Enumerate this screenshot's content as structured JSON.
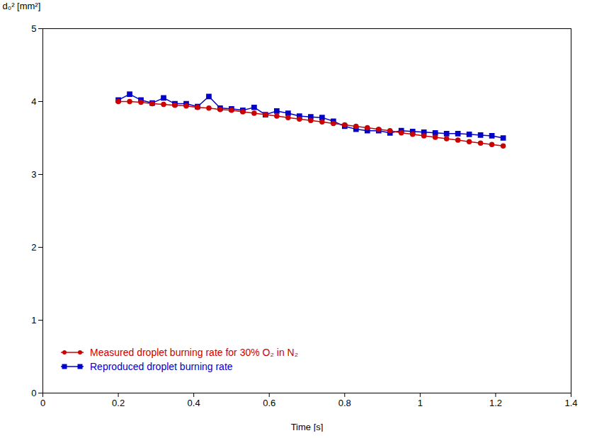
{
  "chart_data": {
    "type": "line",
    "xlabel": "Time [s]",
    "ylabel": "d₀² [mm²]",
    "xlim": [
      0,
      1.4
    ],
    "ylim": [
      0,
      5
    ],
    "xticks": [
      0,
      0.2,
      0.4,
      0.6,
      0.8,
      1,
      1.2,
      1.4
    ],
    "yticks": [
      0,
      1,
      2,
      3,
      4,
      5
    ],
    "x": [
      0.2,
      0.23,
      0.26,
      0.29,
      0.32,
      0.35,
      0.38,
      0.41,
      0.44,
      0.47,
      0.5,
      0.53,
      0.56,
      0.59,
      0.62,
      0.65,
      0.68,
      0.71,
      0.74,
      0.77,
      0.8,
      0.83,
      0.86,
      0.89,
      0.92,
      0.95,
      0.98,
      1.01,
      1.04,
      1.07,
      1.1,
      1.13,
      1.16,
      1.19,
      1.22
    ],
    "series": [
      {
        "name": "Measured droplet burning rate for 30% O₂ in N₂",
        "color": "#cc0000",
        "marker": "circle",
        "values": [
          4.0,
          4.0,
          3.99,
          3.97,
          3.96,
          3.95,
          3.94,
          3.92,
          3.91,
          3.89,
          3.88,
          3.86,
          3.84,
          3.82,
          3.8,
          3.78,
          3.76,
          3.74,
          3.72,
          3.7,
          3.68,
          3.66,
          3.64,
          3.62,
          3.6,
          3.57,
          3.55,
          3.53,
          3.51,
          3.49,
          3.47,
          3.45,
          3.43,
          3.41,
          3.39
        ]
      },
      {
        "name": "Reproduced droplet burning rate",
        "color": "#0000cc",
        "marker": "square",
        "values": [
          4.02,
          4.1,
          4.02,
          3.98,
          4.05,
          3.97,
          3.97,
          3.93,
          4.07,
          3.91,
          3.9,
          3.88,
          3.92,
          3.82,
          3.87,
          3.84,
          3.8,
          3.79,
          3.78,
          3.73,
          3.66,
          3.62,
          3.6,
          3.6,
          3.57,
          3.6,
          3.59,
          3.58,
          3.57,
          3.56,
          3.56,
          3.55,
          3.54,
          3.53,
          3.5
        ]
      }
    ],
    "legend": "lower left"
  }
}
